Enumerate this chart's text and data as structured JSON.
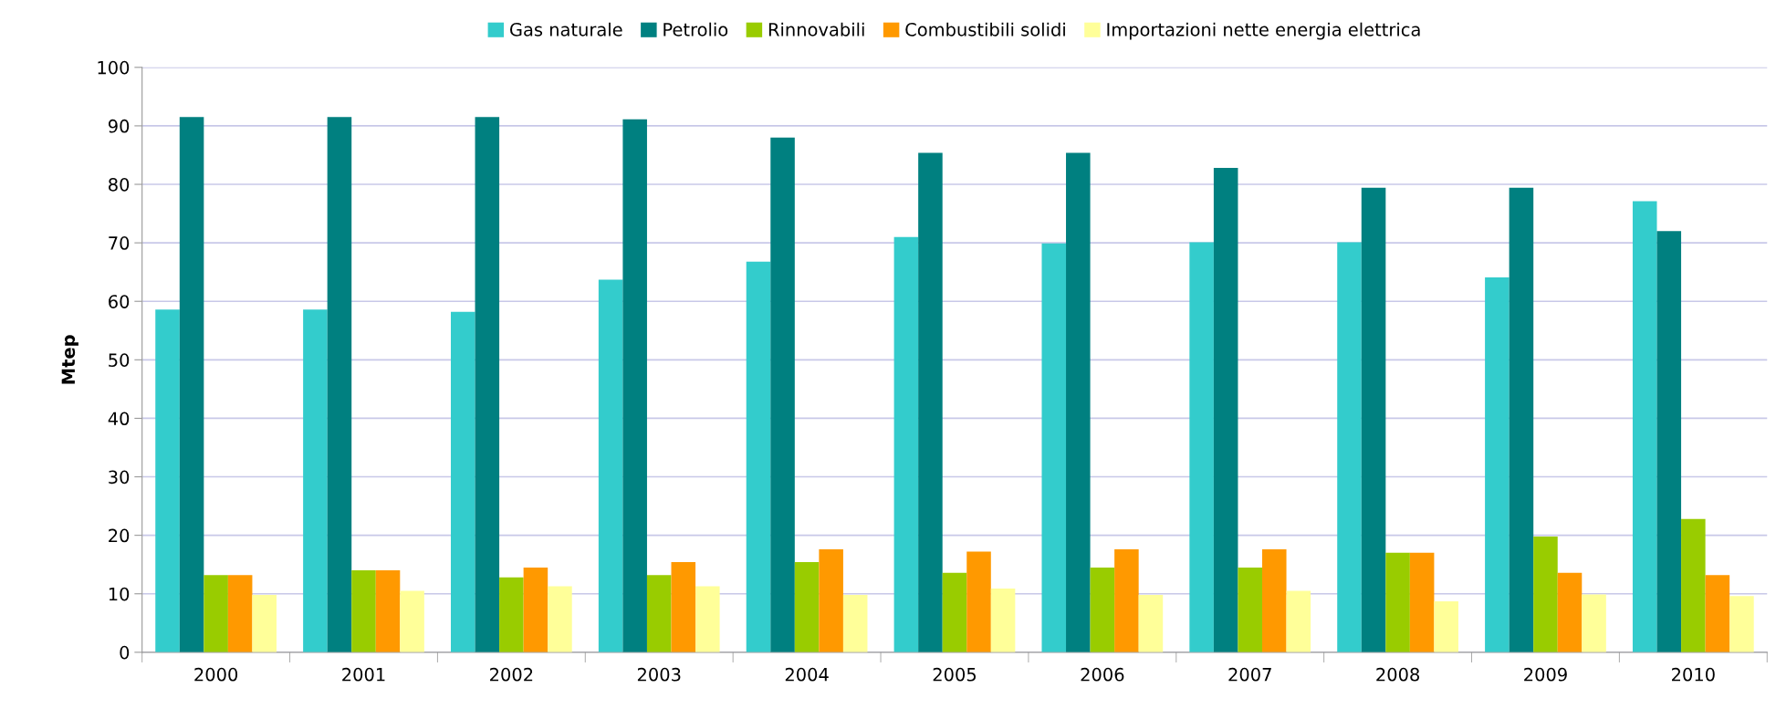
{
  "chart_data": {
    "type": "bar",
    "ylabel": "Mtep",
    "categories": [
      "2000",
      "2001",
      "2002",
      "2003",
      "2004",
      "2005",
      "2006",
      "2007",
      "2008",
      "2009",
      "2010"
    ],
    "series": [
      {
        "name": "Gas naturale",
        "color": "#33cccc",
        "values": [
          58.6,
          58.6,
          58.2,
          63.7,
          66.8,
          71.0,
          69.9,
          70.1,
          70.1,
          64.1,
          77.1
        ]
      },
      {
        "name": "Petrolio",
        "color": "#008080",
        "values": [
          91.5,
          91.5,
          91.5,
          91.1,
          88.0,
          85.4,
          85.4,
          82.8,
          79.4,
          79.4,
          72.0
        ]
      },
      {
        "name": "Rinnovabili",
        "color": "#99cc00",
        "values": [
          13.2,
          14.0,
          12.8,
          13.2,
          15.4,
          13.6,
          14.5,
          14.5,
          17.0,
          19.8,
          22.8
        ]
      },
      {
        "name": "Combustibili solidi",
        "color": "#ff9900",
        "values": [
          13.2,
          14.0,
          14.5,
          15.4,
          17.6,
          17.2,
          17.6,
          17.6,
          17.0,
          13.6,
          13.2
        ]
      },
      {
        "name": "Importazioni nette energia elettrica",
        "color": "#ffff99",
        "values": [
          9.8,
          10.5,
          11.3,
          11.3,
          9.8,
          10.9,
          9.8,
          10.5,
          8.7,
          9.9,
          9.6
        ]
      }
    ],
    "ylim": [
      0,
      100
    ],
    "yticks": [
      0,
      10,
      20,
      30,
      40,
      50,
      60,
      70,
      80,
      90,
      100
    ],
    "grid": "y",
    "legend": "top"
  }
}
